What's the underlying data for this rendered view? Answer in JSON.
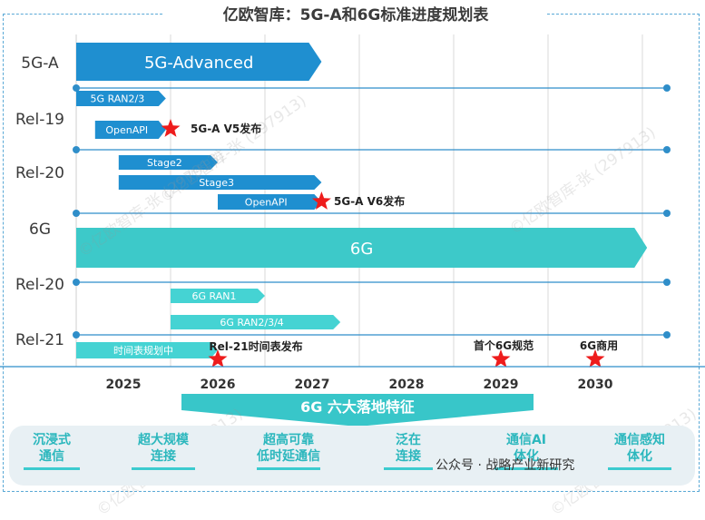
{
  "title": "亿欧智库：5G-A和6G标准进度规划表",
  "chart_data": {
    "type": "gantt",
    "x_axis": {
      "ticks": [
        "2025",
        "2026",
        "2027",
        "2028",
        "2029",
        "2030"
      ]
    },
    "row_labels": [
      "5G-A",
      "Rel-19",
      "Rel-20",
      "6G",
      "Rel-20",
      "Rel-21"
    ],
    "bars": [
      {
        "label": "5G-Advanced",
        "start": 2024.5,
        "end": 2027.1,
        "color": "#1f8fd0",
        "big": true
      },
      {
        "label": "5G RAN2/3",
        "start": 2024.5,
        "end": 2025.45,
        "color": "#1f8fd0"
      },
      {
        "label": "OpenAPI",
        "start": 2024.7,
        "end": 2025.45,
        "color": "#1f8fd0"
      },
      {
        "label": "Stage2",
        "start": 2024.95,
        "end": 2026.0,
        "color": "#1f8fd0"
      },
      {
        "label": "Stage3",
        "start": 2024.95,
        "end": 2027.1,
        "color": "#1f8fd0"
      },
      {
        "label": "OpenAPI",
        "start": 2026.0,
        "end": 2027.1,
        "color": "#1f8fd0"
      },
      {
        "label": "6G",
        "start": 2024.5,
        "end": 2030.55,
        "color": "#3dc9c9",
        "big": true
      },
      {
        "label": "6G RAN1",
        "start": 2025.5,
        "end": 2026.5,
        "color": "#45d3d3"
      },
      {
        "label": "6G  RAN2/3/4",
        "start": 2025.5,
        "end": 2027.3,
        "color": "#45d3d3"
      },
      {
        "label": "时间表规划中",
        "start": 2024.5,
        "end": 2026.0,
        "color": "#45d3d3"
      }
    ],
    "milestones": [
      {
        "label": "5G-A  V5发布",
        "x": 2025.5
      },
      {
        "label": "5G-A   V6发布",
        "x": 2027.1
      },
      {
        "label": "Rel-21时间表发布",
        "x": 2026.0
      },
      {
        "label": "首个6G规范",
        "x": 2029.0
      },
      {
        "label": "6G商用",
        "x": 2030.0
      }
    ]
  },
  "banner": "6G 六大落地特征",
  "features": [
    "沉浸式\n通信",
    "超大规模\n连接",
    "超高可靠\n低时延通信",
    "泛在\n连接",
    "通信AI\n体化",
    "通信感知\n体化"
  ],
  "watermarks": [
    "©亿欧智库-张 (297913)",
    "©亿欧智库-张 (297913)",
    "©亿欧智库-张 (297913)",
    "©亿欧智库-张 (297913)",
    "©亿欧智库-张 (297913)"
  ],
  "footer": "公众号 · 战略产业新研究"
}
